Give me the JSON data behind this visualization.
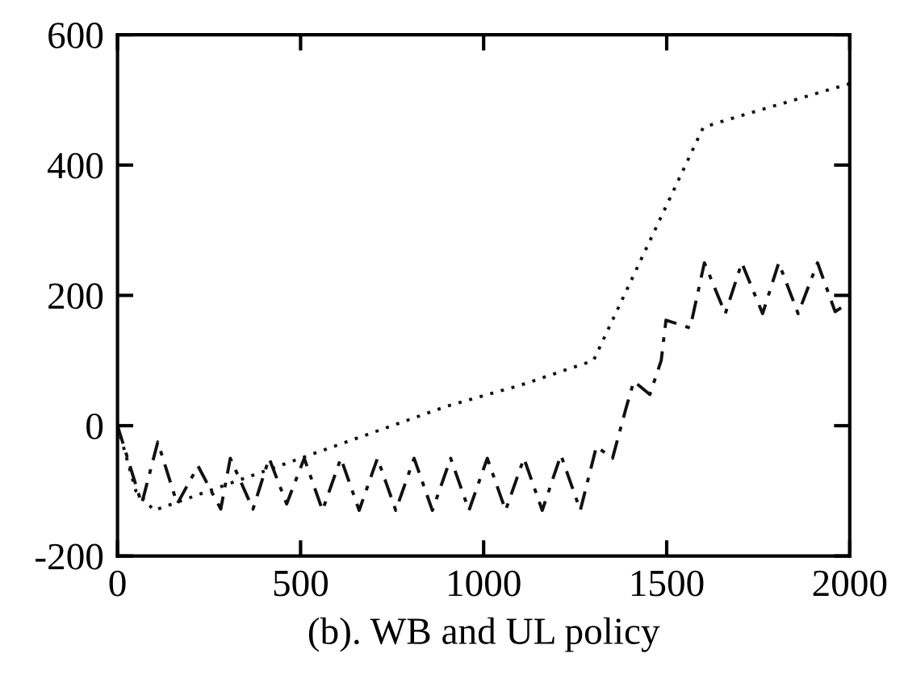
{
  "chart_data": {
    "type": "line",
    "xlabel": "(b). WB and UL policy",
    "xlim": [
      0,
      2000
    ],
    "xticks": [
      0,
      500,
      1000,
      1500,
      2000
    ],
    "ylim": [
      -200,
      600
    ],
    "yticks": [
      -200,
      0,
      200,
      400,
      600
    ],
    "grid": false,
    "marker": "none",
    "series": [
      {
        "color": "#111111",
        "line_style": "dotted",
        "x": [
          0,
          50,
          100,
          150,
          300,
          500,
          700,
          900,
          1100,
          1300,
          1600,
          1680,
          2000
        ],
        "values": [
          0,
          -100,
          -130,
          -120,
          -90,
          -50,
          -10,
          30,
          62,
          100,
          458,
          472,
          525
        ]
      },
      {
        "color": "#111111",
        "line_style": "dashed",
        "x": [
          0,
          66,
          110,
          163,
          220,
          282,
          308,
          370,
          414,
          462,
          510,
          560,
          610,
          660,
          710,
          760,
          810,
          860,
          910,
          960,
          1010,
          1060,
          1110,
          1160,
          1211,
          1264,
          1308,
          1352,
          1388,
          1410,
          1454,
          1485,
          1498,
          1564,
          1603,
          1660,
          1705,
          1762,
          1806,
          1859,
          1912,
          1960,
          2000
        ],
        "values": [
          0,
          -120,
          -25,
          -120,
          -62,
          -128,
          -50,
          -128,
          -50,
          -120,
          -50,
          -130,
          -50,
          -130,
          -50,
          -130,
          -50,
          -130,
          -50,
          -130,
          -50,
          -130,
          -50,
          -130,
          -45,
          -130,
          -32,
          -50,
          25,
          68,
          48,
          100,
          162,
          150,
          250,
          172,
          250,
          172,
          250,
          172,
          250,
          175,
          190
        ]
      }
    ]
  }
}
